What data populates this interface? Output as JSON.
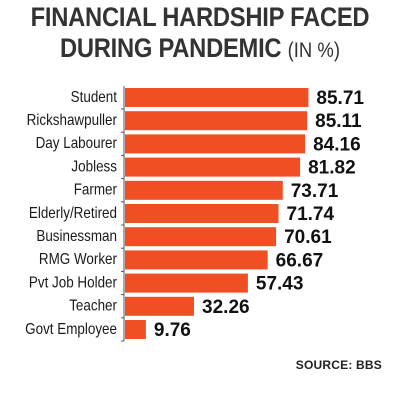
{
  "title_line1": "FINANCIAL HARDSHIP FACED",
  "title_line2": "DURING PANDEMIC",
  "title_unit": "(IN %)",
  "source": "SOURCE: BBS",
  "bar_color": "#f04e23",
  "chart_data": {
    "type": "bar",
    "orientation": "horizontal",
    "title": "FINANCIAL HARDSHIP FACED DURING PANDEMIC (IN %)",
    "categories": [
      "Student",
      "Rickshawpuller",
      "Day Labourer",
      "Jobless",
      "Farmer",
      "Elderly/Retired",
      "Businessman",
      "RMG Worker",
      "Pvt Job Holder",
      "Teacher",
      "Govt Employee"
    ],
    "values": [
      85.71,
      85.11,
      84.16,
      81.82,
      73.71,
      71.74,
      70.61,
      66.67,
      57.43,
      32.26,
      9.76
    ],
    "value_labels": [
      "85.71",
      "85.11",
      "84.16",
      "81.82",
      "73.71",
      "71.74",
      "70.61",
      "66.67",
      "57.43",
      "32.26",
      "9.76"
    ],
    "grid": false,
    "legend": "none"
  }
}
